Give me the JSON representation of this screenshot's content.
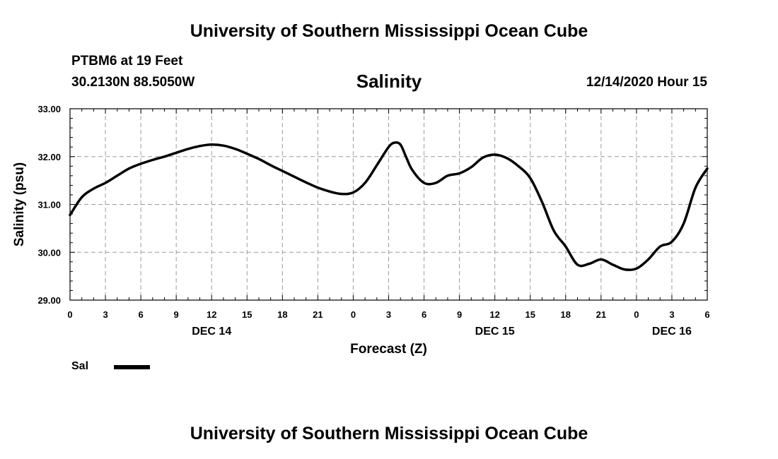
{
  "header": {
    "main_title": "University of Southern Mississippi Ocean Cube",
    "station": "PTBM6 at 19 Feet",
    "coords": "30.2130N 88.5050W",
    "datetime": "12/14/2020 Hour 15"
  },
  "footer": {
    "title": "University of Southern Mississippi Ocean Cube"
  },
  "chart_data": {
    "type": "line",
    "title": "Salinity",
    "xlabel": "Forecast (Z)",
    "ylabel": "Salinity (psu)",
    "ylim": [
      29.0,
      33.0
    ],
    "xlim": [
      0,
      54
    ],
    "yticks": [
      "29.00",
      "30.00",
      "31.00",
      "32.00",
      "33.00"
    ],
    "yticks_values": [
      29,
      30,
      31,
      32,
      33
    ],
    "xticks": [
      {
        "x": 0,
        "label": "0"
      },
      {
        "x": 3,
        "label": "3"
      },
      {
        "x": 6,
        "label": "6"
      },
      {
        "x": 9,
        "label": "9"
      },
      {
        "x": 12,
        "label": "12"
      },
      {
        "x": 15,
        "label": "15"
      },
      {
        "x": 18,
        "label": "18"
      },
      {
        "x": 21,
        "label": "21"
      },
      {
        "x": 24,
        "label": "0"
      },
      {
        "x": 27,
        "label": "3"
      },
      {
        "x": 30,
        "label": "6"
      },
      {
        "x": 33,
        "label": "9"
      },
      {
        "x": 36,
        "label": "12"
      },
      {
        "x": 39,
        "label": "15"
      },
      {
        "x": 42,
        "label": "18"
      },
      {
        "x": 45,
        "label": "21"
      },
      {
        "x": 48,
        "label": "0"
      },
      {
        "x": 51,
        "label": "3"
      },
      {
        "x": 54,
        "label": "6"
      }
    ],
    "day_labels": [
      {
        "x": 12,
        "label": "DEC 14"
      },
      {
        "x": 36,
        "label": "DEC 15"
      },
      {
        "x": 51,
        "label": "DEC 16"
      }
    ],
    "grid": true,
    "color": "#000000",
    "series": [
      {
        "name": "Sal",
        "x": [
          0,
          1,
          2,
          3,
          4,
          5,
          6,
          7,
          8,
          9,
          10,
          11,
          12,
          13,
          14,
          15,
          16,
          17,
          18,
          19,
          20,
          21,
          22,
          23,
          24,
          25,
          26,
          27,
          27.5,
          28,
          28.5,
          29,
          30,
          31,
          32,
          33,
          34,
          35,
          36,
          37,
          38,
          39,
          40,
          41,
          42,
          43,
          44,
          45,
          46,
          47,
          48,
          49,
          50,
          51,
          52,
          53,
          54
        ],
        "values": [
          30.78,
          31.15,
          31.33,
          31.45,
          31.6,
          31.75,
          31.85,
          31.93,
          32.0,
          32.08,
          32.16,
          32.22,
          32.25,
          32.23,
          32.16,
          32.06,
          31.95,
          31.82,
          31.7,
          31.58,
          31.46,
          31.35,
          31.27,
          31.22,
          31.25,
          31.45,
          31.82,
          32.2,
          32.29,
          32.25,
          31.98,
          31.72,
          31.45,
          31.45,
          31.6,
          31.65,
          31.78,
          31.98,
          32.04,
          31.97,
          31.8,
          31.55,
          31.05,
          30.45,
          30.12,
          29.74,
          29.76,
          29.85,
          29.74,
          29.64,
          29.66,
          29.85,
          30.12,
          30.22,
          30.6,
          31.35,
          31.75
        ]
      }
    ],
    "legend": [
      {
        "label": "Sal",
        "position": "bottom-left"
      }
    ]
  }
}
